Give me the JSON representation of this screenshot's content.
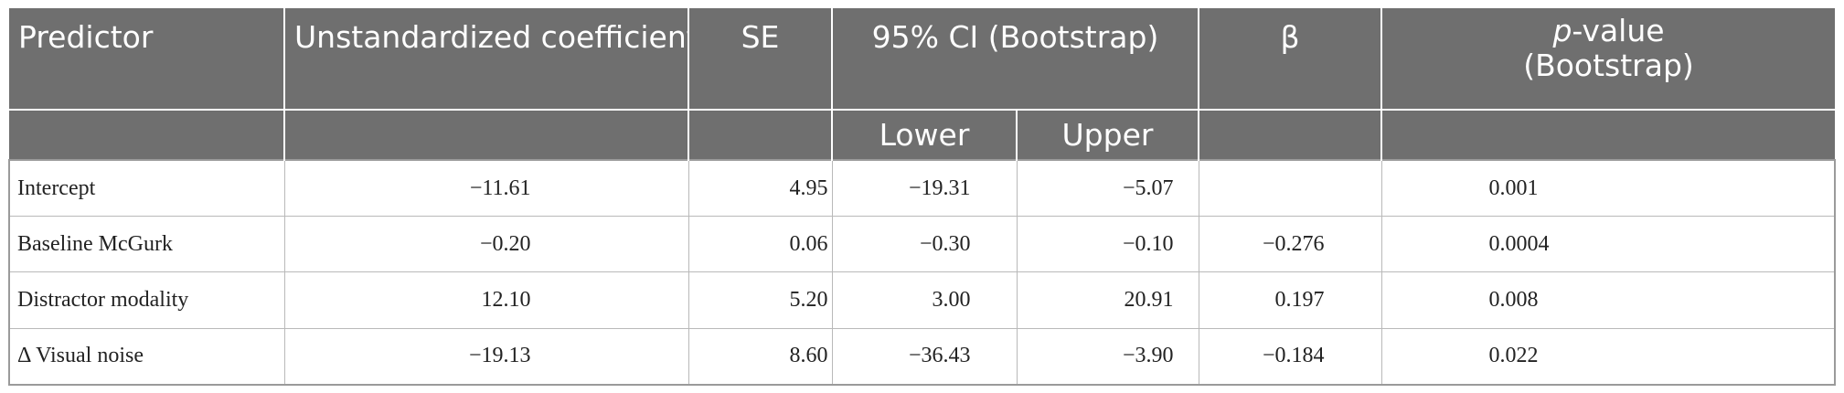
{
  "header": {
    "predictor": "Predictor",
    "unstandardized": "Unstandardized coefficients",
    "se": "SE",
    "ci": "95% CI (Bootstrap)",
    "beta": "β",
    "p_italic": "p",
    "p_rest": "-value",
    "p_line2": "(Bootstrap)",
    "lower": "Lower",
    "upper": "Upper"
  },
  "rows": [
    {
      "predictor": "Intercept",
      "coef": "−11.61",
      "se": "4.95",
      "lower": "−19.31",
      "upper": "−5.07",
      "beta": "",
      "p": "0.001"
    },
    {
      "predictor": "Baseline McGurk",
      "coef": "−0.20",
      "se": "0.06",
      "lower": "−0.30",
      "upper": "−0.10",
      "beta": "−0.276",
      "p": "0.0004"
    },
    {
      "predictor": "Distractor modality",
      "coef": "12.10",
      "se": "5.20",
      "lower": "3.00",
      "upper": "20.91",
      "beta": "0.197",
      "p": "0.008"
    },
    {
      "predictor": "Δ Visual noise",
      "coef": "−19.13",
      "se": "8.60",
      "lower": "−36.43",
      "upper": "−3.90",
      "beta": "−0.184",
      "p": "0.022"
    }
  ]
}
